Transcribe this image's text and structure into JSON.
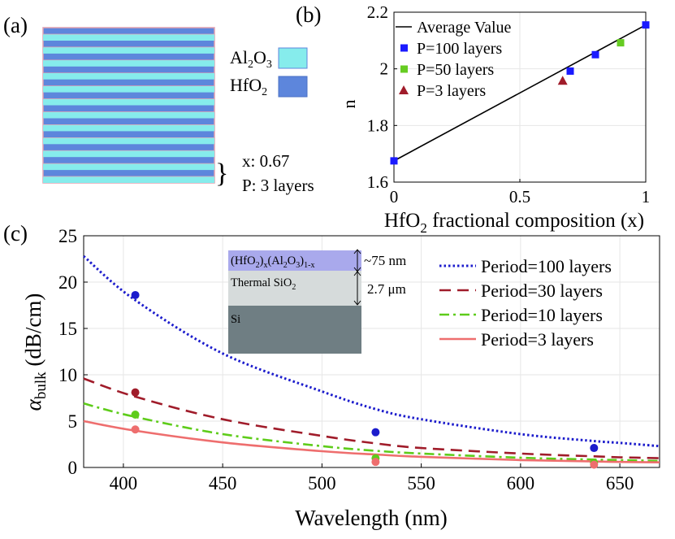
{
  "panels": {
    "a": "(a)",
    "b": "(b)",
    "c": "(c)"
  },
  "panel_a": {
    "legend": [
      {
        "base": "Al",
        "sub1": "2",
        "mid": "O",
        "sub2": "3",
        "color": "#86ecec"
      },
      {
        "base": "HfO",
        "sub1": "2",
        "mid": "",
        "sub2": "",
        "color": "#5d86dc"
      }
    ],
    "stack": {
      "pairs": 12,
      "hfo2_color": "#5d86dc",
      "al2o3_color": "#86ecec",
      "border_color": "#e2a0b0"
    },
    "note_x": "x: 0.67",
    "note_p": "P: 3 layers"
  },
  "chart_data": [
    {
      "type": "scatter",
      "xlabel": "HfO2 fractional composition (x)",
      "xlabel_parts": {
        "base": "HfO",
        "sub": "2",
        "rest": " fractional composition (x)"
      },
      "ylabel": "n",
      "xlim": [
        0,
        1
      ],
      "ylim": [
        1.6,
        2.2
      ],
      "xticks": [
        "0",
        "0.5",
        "1"
      ],
      "yticks": [
        "1.6",
        "1.8",
        "2",
        "2.2"
      ],
      "grid": true,
      "legend_position": "top-left",
      "series": [
        {
          "name": "Average Value",
          "kind": "line",
          "color": "#000000",
          "x": [
            0,
            1
          ],
          "y": [
            1.675,
            2.155
          ]
        },
        {
          "name": "P=100 layers",
          "kind": "square",
          "color": "#1a1aff",
          "x": [
            0,
            0.7,
            0.8,
            1.0
          ],
          "y": [
            1.675,
            1.992,
            2.05,
            2.155
          ]
        },
        {
          "name": "P=50 layers",
          "kind": "square",
          "color": "#66cc22",
          "x": [
            0.9
          ],
          "y": [
            2.092
          ]
        },
        {
          "name": "P=3 layers",
          "kind": "triangle",
          "color": "#a01c2a",
          "x": [
            0.67
          ],
          "y": [
            1.958
          ]
        }
      ]
    },
    {
      "type": "line",
      "xlabel": "Wavelength (nm)",
      "ylabel": "αbulk (dB/cm)",
      "ylabel_parts": {
        "greek": "α",
        "sub": "bulk",
        "rest": " (dB/cm)"
      },
      "xlim": [
        380,
        670
      ],
      "ylim": [
        0,
        25
      ],
      "xticks": [
        "400",
        "450",
        "500",
        "550",
        "600",
        "650"
      ],
      "yticks": [
        "0",
        "5",
        "10",
        "15",
        "20",
        "25"
      ],
      "grid": true,
      "legend_position": "top-right",
      "series": [
        {
          "name": "Period=100 layers",
          "style": "dotted",
          "color": "#1c1ccc",
          "x": [
            380,
            405,
            450,
            500,
            527,
            550,
            600,
            637,
            650,
            670
          ],
          "y": [
            22.8,
            18.2,
            12.3,
            8.2,
            6.3,
            5.2,
            3.6,
            2.85,
            2.65,
            2.3
          ],
          "points_x": [
            406,
            527,
            637
          ],
          "points_y": [
            18.6,
            3.8,
            2.1
          ]
        },
        {
          "name": "Period=30 layers",
          "style": "dashed",
          "color": "#a01c2a",
          "x": [
            380,
            405,
            450,
            500,
            527,
            550,
            600,
            637,
            650,
            670
          ],
          "y": [
            9.6,
            7.7,
            5.2,
            3.4,
            2.6,
            2.1,
            1.5,
            1.2,
            1.1,
            1.0
          ],
          "points_x": [
            406
          ],
          "points_y": [
            8.1
          ]
        },
        {
          "name": "Period=10 layers",
          "style": "dashdot",
          "color": "#5ecc1a",
          "x": [
            380,
            405,
            450,
            500,
            527,
            550,
            600,
            637,
            650,
            670
          ],
          "y": [
            6.9,
            5.5,
            3.6,
            2.3,
            1.8,
            1.5,
            1.05,
            0.85,
            0.8,
            0.7
          ],
          "points_x": [
            406,
            527,
            637
          ],
          "points_y": [
            5.7,
            1.0,
            0.5
          ]
        },
        {
          "name": "Period=3 layers",
          "style": "solid",
          "color": "#ee6e6e",
          "x": [
            380,
            405,
            450,
            500,
            527,
            550,
            600,
            637,
            650,
            670
          ],
          "y": [
            5.0,
            4.0,
            2.7,
            1.75,
            1.4,
            1.15,
            0.8,
            0.65,
            0.6,
            0.55
          ],
          "points_x": [
            406,
            527,
            637
          ],
          "points_y": [
            4.1,
            0.6,
            0.3
          ]
        }
      ],
      "inset": {
        "top_label": {
          "p1": "(HfO",
          "s1": "2",
          "p2": ")",
          "s2": "x",
          "p3": "(Al",
          "s3": "2",
          "p4": "O",
          "s4": "3",
          "p5": ")",
          "s5": "1-x"
        },
        "mid_label": {
          "base": "Thermal SiO",
          "sub": "2"
        },
        "bottom_label": "Si",
        "thickness_top": "~75 nm",
        "thickness_mid": "2.7 μm",
        "colors": {
          "top": "#a9a9ec",
          "mid": "#d6dbdb",
          "bottom": "#6f7e83"
        }
      }
    }
  ]
}
